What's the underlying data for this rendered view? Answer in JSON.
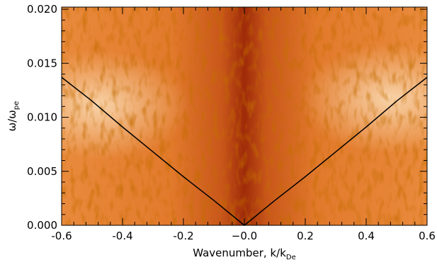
{
  "chart_data": {
    "type": "line",
    "x_label": {
      "text": "Wavenumber, k/k",
      "sub": "De"
    },
    "y_label": {
      "text": "ω/ω",
      "sub": "pe"
    },
    "x": [
      -0.6,
      -0.5,
      -0.4,
      -0.3,
      -0.2,
      -0.1,
      0.0,
      0.1,
      0.2,
      0.3,
      0.4,
      0.5,
      0.6
    ],
    "series": [
      {
        "color": "#000000",
        "values": [
          0.0137,
          0.0115,
          0.0091,
          0.0068,
          0.0045,
          0.0023,
          0.0,
          0.0023,
          0.0045,
          0.0068,
          0.0091,
          0.0115,
          0.0137
        ]
      }
    ],
    "xlim": [
      -0.6,
      0.6
    ],
    "ylim": [
      0.0,
      0.0202
    ],
    "xticks": [
      -0.6,
      -0.4,
      -0.2,
      {
        "value": 0,
        "label": "−0.0"
      },
      0.2,
      0.4,
      0.6
    ],
    "yticks": [
      {
        "value": 0,
        "label": "0.000"
      },
      {
        "value": 0.005,
        "label": "0.005"
      },
      {
        "value": 0.01,
        "label": "0.010"
      },
      {
        "value": 0.015,
        "label": "0.015"
      },
      {
        "value": 0.02,
        "label": "0.020"
      }
    ]
  }
}
